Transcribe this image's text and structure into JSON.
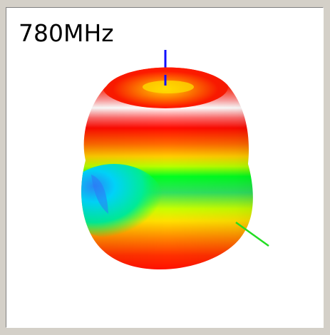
{
  "viewer": {
    "frequency_label": "780MHz"
  },
  "axes": {
    "z_axis_color": "#1010ff",
    "y_axis_color": "#22dd22"
  },
  "pattern": {
    "colormap": [
      "#ff0000",
      "#ff7700",
      "#ffee00",
      "#00ff00",
      "#00dddd",
      "#ffffff"
    ]
  }
}
